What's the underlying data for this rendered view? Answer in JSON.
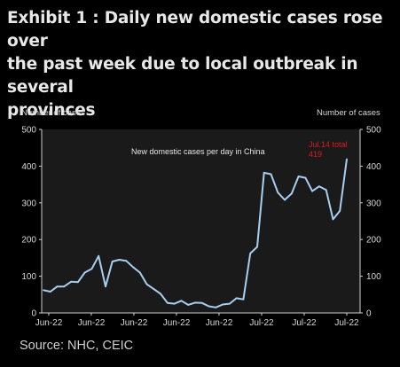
{
  "title_line1": "Exhibit 1 : Daily new domestic cases rose over",
  "title_line2": "the past week due to local outbreak in several",
  "title_line3": "provinces",
  "source": "Source: NHC, CEIC",
  "colors": {
    "background": "#000000",
    "plot_background": "#1a1a1a",
    "line": "#a8cff0",
    "annotation": "#e0191e",
    "text": "#e6e6e6"
  },
  "chart_data": {
    "type": "line",
    "title": "",
    "ylabel_left": "Number of cases",
    "ylabel_right": "Number of cases",
    "ylim": [
      0,
      500
    ],
    "yticks": [
      0,
      100,
      200,
      300,
      400,
      500
    ],
    "xticks": [
      "Jun-22",
      "Jun-22",
      "Jun-22",
      "Jun-22",
      "Jun-22",
      "Jul-22",
      "Jul-22",
      "Jul-22"
    ],
    "series_label": "New domestic cases per day in China",
    "annotation_line1": "Jul.14 total",
    "annotation_line2": "419",
    "grid": false,
    "series": [
      {
        "values": [
          62,
          58,
          72,
          72,
          85,
          84,
          110,
          120,
          155,
          72,
          140,
          145,
          142,
          125,
          110,
          78,
          65,
          52,
          27,
          25,
          33,
          22,
          28,
          27,
          18,
          15,
          23,
          25,
          40,
          37,
          162,
          180,
          382,
          378,
          328,
          308,
          325,
          372,
          368,
          332,
          345,
          335,
          255,
          278,
          419
        ]
      }
    ]
  }
}
